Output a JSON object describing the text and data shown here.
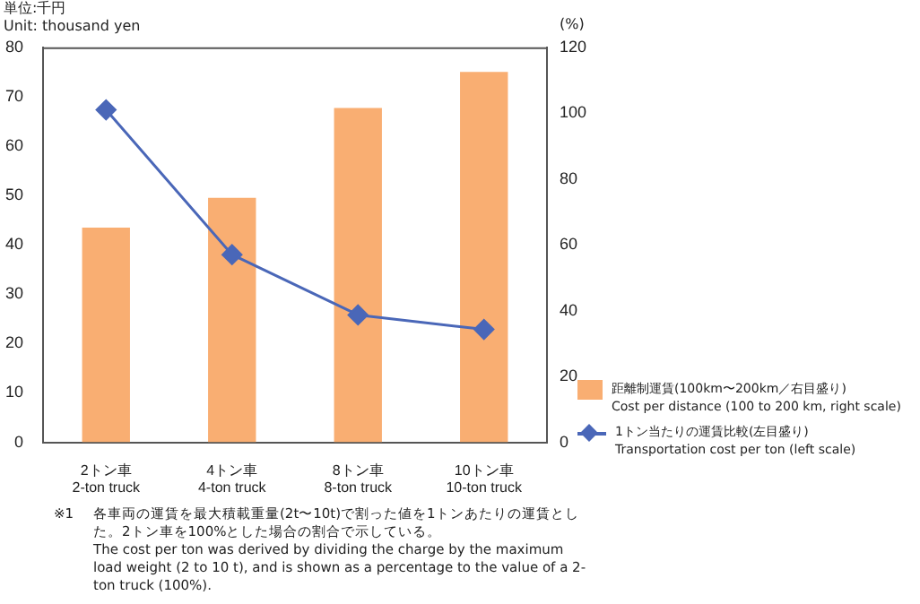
{
  "chart_data": {
    "type": "bar",
    "ylabel": "単位:千円\nUnit: thousand yen",
    "y2label": "(%)",
    "categories": [
      "2トン車\n2-ton truck",
      "4トン車\n4-ton truck",
      "8トン車\n8-ton truck",
      "10トン車\n10-ton truck"
    ],
    "series": [
      {
        "name": "距離制運賃(100km〜200km／右目盛り)\nCost per distance (100 to 200 km, right scale)",
        "color": "#f9ae72",
        "values": [
          43.5,
          49.5,
          67.7,
          75
        ]
      },
      {
        "name": "1トン当たりの運賃比較(左目盛り)\nTransportation cost per ton (left scale)",
        "type": "line",
        "axis": "y2",
        "color": "#4a67b8",
        "values": [
          101,
          57,
          38.7,
          34.3
        ]
      }
    ],
    "ylim": [
      0,
      80
    ],
    "yticks": [
      0,
      10,
      20,
      30,
      40,
      50,
      60,
      70,
      80
    ],
    "y2lim": [
      0,
      120
    ],
    "y2ticks": [
      0,
      20,
      40,
      60,
      80,
      100,
      120
    ],
    "marker": "diamond",
    "grid": false,
    "legend": "right",
    "annotations": [
      "※1",
      "各車両の運賃を最大積載重量(2t〜10t)で割った値を1トンあたりの運賃とした。2トン車を100%とした場合の割合で示している。",
      "The cost per ton was derived by dividing the charge by the maximum load weight (2 to 10 t), and is shown as a percentage to the value of a 2-ton truck (100%)."
    ]
  }
}
